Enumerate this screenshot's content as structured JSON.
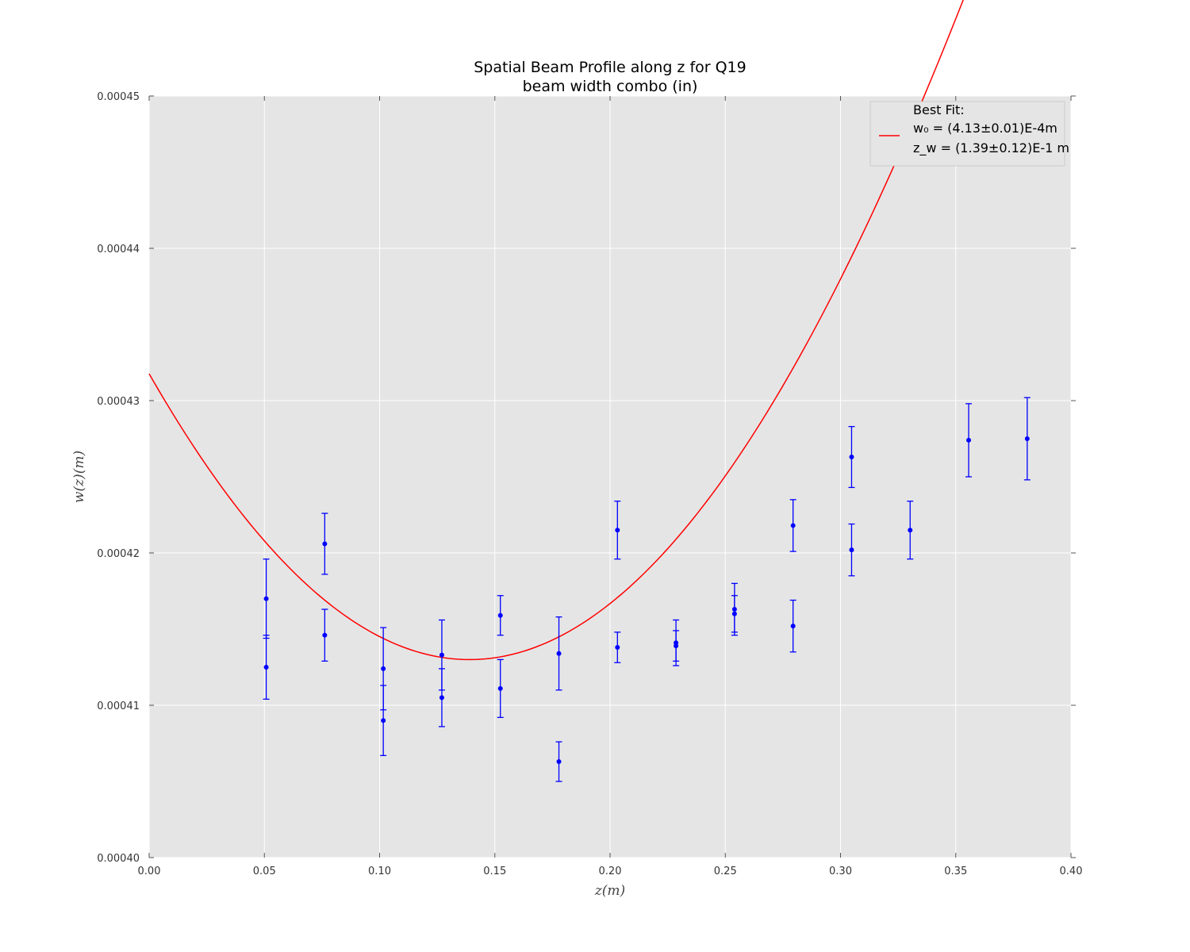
{
  "chart_data": {
    "type": "scatter",
    "title": "Spatial Beam Profile along z for Q19",
    "subtitle": "beam width combo (in)",
    "xlabel": "z(m)",
    "ylabel": "w(z)(m)",
    "xlim": [
      0.0,
      0.4
    ],
    "ylim": [
      0.0004,
      0.00045
    ],
    "xticks": [
      "0.00",
      "0.05",
      "0.10",
      "0.15",
      "0.20",
      "0.25",
      "0.30",
      "0.35",
      "0.40"
    ],
    "yticks": [
      "0.00040",
      "0.00041",
      "0.00042",
      "0.00043",
      "0.00044",
      "0.00045"
    ],
    "grid": true,
    "legend_position": "top-right",
    "colors": {
      "data": "#0000ff",
      "fit": "#ff0000",
      "plot_bg": "#e5e5e5",
      "grid": "#ffffff"
    },
    "legend": {
      "heading": "Best Fit:",
      "w0_label": "w₀ = (4.13±0.01)E-4m",
      "zw_label": "z_w = (1.39±0.12)E-1 m"
    },
    "fit": {
      "w0": 0.000413,
      "z0": 0.139,
      "zR": 0.456
    },
    "series": [
      {
        "name": "data",
        "points": [
          {
            "x": 0.0508,
            "y": 0.000417,
            "err": 2.6e-06
          },
          {
            "x": 0.0508,
            "y": 0.0004125,
            "err": 2.1e-06
          },
          {
            "x": 0.0762,
            "y": 0.0004206,
            "err": 2e-06
          },
          {
            "x": 0.0762,
            "y": 0.0004146,
            "err": 1.7e-06
          },
          {
            "x": 0.1016,
            "y": 0.0004124,
            "err": 2.7e-06
          },
          {
            "x": 0.1016,
            "y": 0.000409,
            "err": 2.3e-06
          },
          {
            "x": 0.127,
            "y": 0.0004133,
            "err": 2.3e-06
          },
          {
            "x": 0.127,
            "y": 0.0004105,
            "err": 1.9e-06
          },
          {
            "x": 0.1524,
            "y": 0.0004159,
            "err": 1.3e-06
          },
          {
            "x": 0.1524,
            "y": 0.0004111,
            "err": 1.9e-06
          },
          {
            "x": 0.1778,
            "y": 0.0004134,
            "err": 2.4e-06
          },
          {
            "x": 0.1778,
            "y": 0.0004063,
            "err": 1.3e-06
          },
          {
            "x": 0.2032,
            "y": 0.0004215,
            "err": 1.9e-06
          },
          {
            "x": 0.2032,
            "y": 0.0004138,
            "err": 1e-06
          },
          {
            "x": 0.2286,
            "y": 0.0004141,
            "err": 1.5e-06
          },
          {
            "x": 0.2286,
            "y": 0.0004139,
            "err": 1e-06
          },
          {
            "x": 0.254,
            "y": 0.0004163,
            "err": 1.7e-06
          },
          {
            "x": 0.254,
            "y": 0.000416,
            "err": 1.2e-06
          },
          {
            "x": 0.2794,
            "y": 0.0004218,
            "err": 1.7e-06
          },
          {
            "x": 0.2794,
            "y": 0.0004152,
            "err": 1.7e-06
          },
          {
            "x": 0.3048,
            "y": 0.0004263,
            "err": 2e-06
          },
          {
            "x": 0.3048,
            "y": 0.0004202,
            "err": 1.7e-06
          },
          {
            "x": 0.3302,
            "y": 0.0004215,
            "err": 1.9e-06
          },
          {
            "x": 0.3556,
            "y": 0.0004274,
            "err": 2.4e-06
          },
          {
            "x": 0.381,
            "y": 0.0004275,
            "err": 2.7e-06
          }
        ]
      }
    ]
  }
}
